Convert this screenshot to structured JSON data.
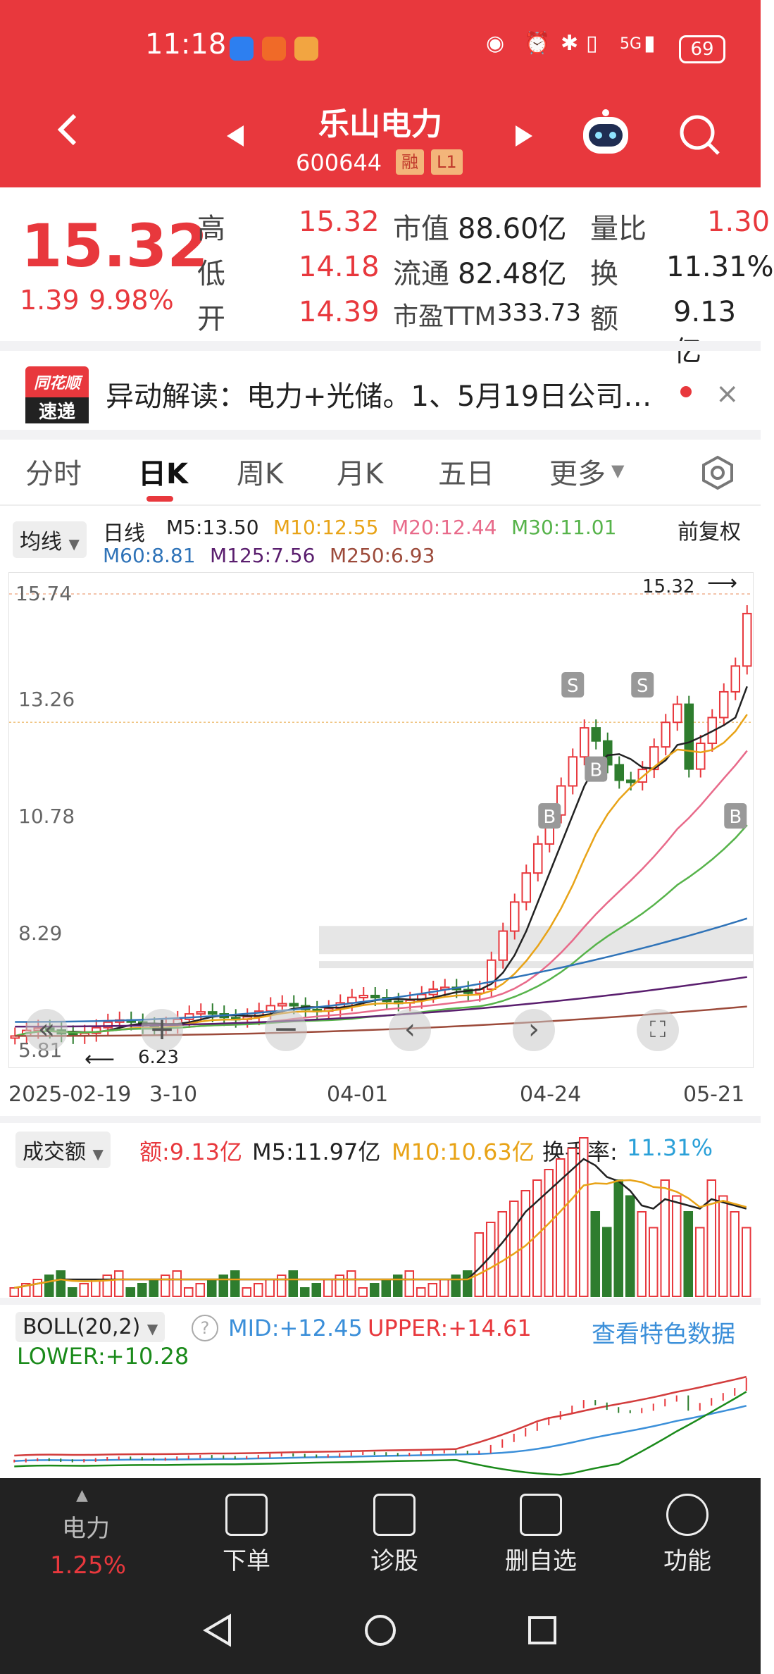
{
  "status": {
    "time": "11:18",
    "network": "5G",
    "battery": "69"
  },
  "header": {
    "title": "乐山电力",
    "code": "600644",
    "tag_margin": "融",
    "tag_level": "L1"
  },
  "quote": {
    "price": "15.32",
    "change": "1.39",
    "change_pct": "9.98%",
    "fields": [
      {
        "label": "高",
        "value": "15.32"
      },
      {
        "label": "低",
        "value": "14.18"
      },
      {
        "label": "开",
        "value": "14.39"
      },
      {
        "label": "市值",
        "value": "88.60亿"
      },
      {
        "label": "流通",
        "value": "82.48亿"
      },
      {
        "label": "市盈TTM",
        "value": "333.73"
      },
      {
        "label": "量比",
        "value": "1.30"
      },
      {
        "label": "换",
        "value": "11.31%"
      },
      {
        "label": "额",
        "value": "9.13亿"
      }
    ]
  },
  "news": {
    "logo_line1": "同花顺",
    "logo_line2": "速递",
    "text": "异动解读：电力+光储。1、5月19日公司…"
  },
  "tabs": [
    "分时",
    "日K",
    "周K",
    "月K",
    "五日",
    "更多"
  ],
  "kline": {
    "indicator_select": "均线",
    "period": "日线",
    "adjust": "前复权",
    "ma": [
      {
        "name": "M5:13.50",
        "color": "#222222"
      },
      {
        "name": "M10:12.55",
        "color": "#e8a317"
      },
      {
        "name": "M20:12.44",
        "color": "#e86a8a"
      },
      {
        "name": "M30:11.01",
        "color": "#56b34a"
      },
      {
        "name": "M60:8.81",
        "color": "#2f73b8"
      },
      {
        "name": "M125:7.56",
        "color": "#5a1e6e"
      },
      {
        "name": "M250:6.93",
        "color": "#9c4a3a"
      }
    ],
    "y_ticks": [
      "15.74",
      "13.26",
      "10.78",
      "8.29",
      "5.81"
    ],
    "high_label": "15.32",
    "low_label": "6.23",
    "x_ticks": [
      "2025-02-19",
      "3-10",
      "04-01",
      "04-24",
      "05-21"
    ],
    "markers": [
      "S",
      "S",
      "B",
      "B",
      "B"
    ]
  },
  "volume": {
    "select": "成交额",
    "amount": "额:9.13亿",
    "m5": "M5:11.97亿",
    "m10": "M10:10.63亿",
    "turnover_label": "换手率:",
    "turnover": "11.31%"
  },
  "boll": {
    "select": "BOLL(20,2)",
    "mid": "MID:+12.45",
    "upper": "UPPER:+14.61",
    "lower": "LOWER:+10.28",
    "link": "查看特色数据"
  },
  "bottom_nav": {
    "sector": "电力",
    "sector_pct": "1.25%",
    "items": [
      "下单",
      "诊股",
      "删自选",
      "功能"
    ]
  },
  "colors": {
    "brand": "#e8383d",
    "up": "#e8383d",
    "down": "#2e7d2e"
  }
}
